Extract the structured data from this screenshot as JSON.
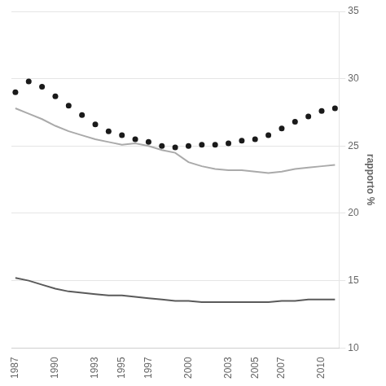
{
  "chart_data": {
    "type": "line",
    "x": [
      1987,
      1988,
      1989,
      1990,
      1991,
      1992,
      1993,
      1994,
      1995,
      1996,
      1997,
      1998,
      1999,
      2000,
      2001,
      2002,
      2003,
      2004,
      2005,
      2006,
      2007,
      2008,
      2009,
      2010,
      2011
    ],
    "series": [
      {
        "color": "#5a5a5a",
        "values": [
          15.2,
          15.0,
          14.7,
          14.4,
          14.2,
          14.1,
          14.0,
          13.9,
          13.9,
          13.8,
          13.7,
          13.6,
          13.5,
          13.5,
          13.4,
          13.4,
          13.4,
          13.4,
          13.4,
          13.4,
          13.5,
          13.5,
          13.6,
          13.6,
          13.6
        ]
      },
      {
        "color": "#aaaaaa",
        "values": [
          27.8,
          27.4,
          27.0,
          26.5,
          26.1,
          25.8,
          25.5,
          25.3,
          25.1,
          25.2,
          25.0,
          24.7,
          24.5,
          23.8,
          23.5,
          23.3,
          23.2,
          23.2,
          23.1,
          23.0,
          23.1,
          23.3,
          23.4,
          23.5,
          23.6
        ]
      },
      {
        "type": "scatter",
        "marker": "circle",
        "color": "#1a1a1a",
        "values": [
          29.0,
          29.8,
          29.4,
          28.7,
          28.0,
          27.3,
          26.6,
          26.1,
          25.8,
          25.5,
          25.3,
          25.0,
          24.9,
          25.0,
          25.1,
          25.1,
          25.2,
          25.4,
          25.5,
          25.8,
          26.3,
          26.8,
          27.2,
          27.6,
          27.8
        ]
      }
    ],
    "xlim": [
      1986.7,
      2011.3
    ],
    "xticks": [
      1987,
      1990,
      1993,
      1995,
      1997,
      2000,
      2003,
      2005,
      2007,
      2010
    ],
    "ylim": [
      10,
      35
    ],
    "yticks": [
      10,
      15,
      20,
      25,
      30,
      35
    ],
    "ylabel": "rapporto %",
    "grid": "y"
  }
}
